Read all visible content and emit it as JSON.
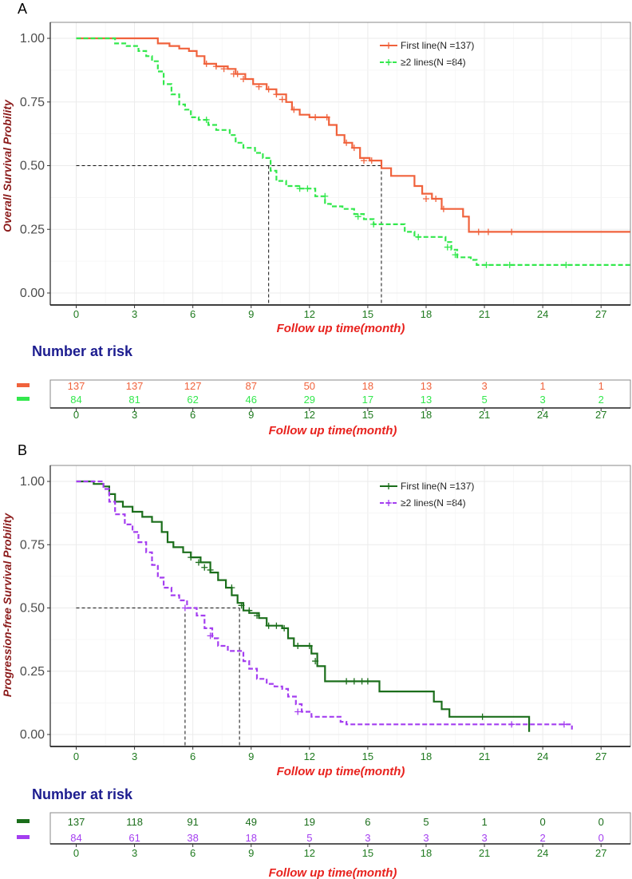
{
  "chart_data": [
    {
      "panel": "A",
      "type": "line",
      "subtype": "kaplan-meier",
      "ylabel": "Overall Survival Probility",
      "xlabel": "Follow up time(month)",
      "xlim": [
        0,
        28.5
      ],
      "ylim": [
        0,
        1.0
      ],
      "xticks": [
        "0",
        "3",
        "6",
        "9",
        "12",
        "15",
        "18",
        "21",
        "24",
        "27"
      ],
      "yticks": [
        "0.00",
        "0.25",
        "0.50",
        "0.75",
        "1.00"
      ],
      "median_lines": [
        9.9,
        15.7
      ],
      "series": [
        {
          "name": "First line(N =137)",
          "color": "#f0623c",
          "dash": false,
          "points": [
            [
              0,
              1.0
            ],
            [
              3.5,
              1.0
            ],
            [
              4.2,
              0.98
            ],
            [
              4.8,
              0.97
            ],
            [
              5.3,
              0.96
            ],
            [
              5.8,
              0.95
            ],
            [
              6.2,
              0.93
            ],
            [
              6.6,
              0.9
            ],
            [
              7.2,
              0.89
            ],
            [
              7.8,
              0.88
            ],
            [
              8.2,
              0.86
            ],
            [
              8.7,
              0.84
            ],
            [
              9.1,
              0.82
            ],
            [
              9.8,
              0.8
            ],
            [
              10.3,
              0.78
            ],
            [
              10.8,
              0.75
            ],
            [
              11.1,
              0.72
            ],
            [
              11.5,
              0.7
            ],
            [
              12.0,
              0.69
            ],
            [
              12.7,
              0.69
            ],
            [
              13.0,
              0.66
            ],
            [
              13.4,
              0.62
            ],
            [
              13.8,
              0.59
            ],
            [
              14.2,
              0.57
            ],
            [
              14.6,
              0.53
            ],
            [
              15.1,
              0.52
            ],
            [
              15.5,
              0.52
            ],
            [
              15.7,
              0.49
            ],
            [
              16.2,
              0.46
            ],
            [
              17.1,
              0.46
            ],
            [
              17.4,
              0.42
            ],
            [
              17.8,
              0.39
            ],
            [
              18.3,
              0.37
            ],
            [
              18.8,
              0.33
            ],
            [
              19.5,
              0.33
            ],
            [
              19.9,
              0.3
            ],
            [
              20.2,
              0.24
            ],
            [
              28.5,
              0.24
            ]
          ],
          "censors": [
            [
              6.7,
              0.9
            ],
            [
              7.2,
              0.89
            ],
            [
              7.6,
              0.88
            ],
            [
              8.1,
              0.86
            ],
            [
              8.3,
              0.86
            ],
            [
              8.6,
              0.84
            ],
            [
              9.4,
              0.81
            ],
            [
              9.9,
              0.8
            ],
            [
              10.3,
              0.78
            ],
            [
              10.6,
              0.76
            ],
            [
              11.2,
              0.72
            ],
            [
              12.3,
              0.69
            ],
            [
              12.9,
              0.69
            ],
            [
              13.9,
              0.59
            ],
            [
              14.3,
              0.57
            ],
            [
              14.8,
              0.52
            ],
            [
              15.2,
              0.52
            ],
            [
              18.0,
              0.37
            ],
            [
              18.5,
              0.37
            ],
            [
              18.9,
              0.33
            ],
            [
              20.7,
              0.24
            ],
            [
              21.2,
              0.24
            ],
            [
              22.4,
              0.24
            ]
          ]
        },
        {
          "name": "≥2 lines(N =84)",
          "color": "#33e84d",
          "dash": true,
          "points": [
            [
              0,
              1.0
            ],
            [
              1.5,
              1.0
            ],
            [
              2.0,
              0.98
            ],
            [
              2.6,
              0.97
            ],
            [
              3.2,
              0.95
            ],
            [
              3.6,
              0.93
            ],
            [
              3.9,
              0.91
            ],
            [
              4.2,
              0.87
            ],
            [
              4.5,
              0.82
            ],
            [
              4.9,
              0.78
            ],
            [
              5.3,
              0.74
            ],
            [
              5.6,
              0.72
            ],
            [
              5.9,
              0.69
            ],
            [
              6.3,
              0.68
            ],
            [
              6.8,
              0.66
            ],
            [
              7.2,
              0.64
            ],
            [
              7.9,
              0.62
            ],
            [
              8.2,
              0.59
            ],
            [
              8.6,
              0.57
            ],
            [
              9.2,
              0.55
            ],
            [
              9.6,
              0.53
            ],
            [
              10.0,
              0.48
            ],
            [
              10.3,
              0.44
            ],
            [
              10.8,
              0.42
            ],
            [
              11.5,
              0.41
            ],
            [
              12.3,
              0.38
            ],
            [
              12.8,
              0.35
            ],
            [
              13.1,
              0.34
            ],
            [
              13.7,
              0.33
            ],
            [
              14.3,
              0.31
            ],
            [
              14.8,
              0.29
            ],
            [
              15.3,
              0.27
            ],
            [
              16.3,
              0.27
            ],
            [
              16.9,
              0.24
            ],
            [
              17.4,
              0.22
            ],
            [
              18.2,
              0.22
            ],
            [
              19.0,
              0.2
            ],
            [
              19.3,
              0.17
            ],
            [
              19.6,
              0.14
            ],
            [
              20.3,
              0.13
            ],
            [
              20.6,
              0.11
            ],
            [
              28.5,
              0.11
            ]
          ],
          "censors": [
            [
              6.7,
              0.68
            ],
            [
              11.5,
              0.41
            ],
            [
              11.9,
              0.41
            ],
            [
              12.8,
              0.38
            ],
            [
              14.5,
              0.3
            ],
            [
              15.3,
              0.27
            ],
            [
              17.6,
              0.22
            ],
            [
              19.1,
              0.18
            ],
            [
              19.5,
              0.15
            ],
            [
              21.1,
              0.11
            ],
            [
              22.3,
              0.11
            ],
            [
              25.2,
              0.11
            ]
          ]
        }
      ],
      "risk_table": {
        "title": "Number at risk",
        "xlabel": "Follow up time(month)",
        "rows": [
          {
            "color": "#f0623c",
            "values": [
              "137",
              "137",
              "127",
              "87",
              "50",
              "18",
              "13",
              "3",
              "1",
              "1"
            ]
          },
          {
            "color": "#33e84d",
            "values": [
              "84",
              "81",
              "62",
              "46",
              "29",
              "17",
              "13",
              "5",
              "3",
              "2"
            ]
          }
        ]
      }
    },
    {
      "panel": "B",
      "type": "line",
      "subtype": "kaplan-meier",
      "ylabel": "Progression-free Survival Probility",
      "xlabel": "Follow up time(month)",
      "xlim": [
        0,
        28.5
      ],
      "ylim": [
        0,
        1.0
      ],
      "xticks": [
        "0",
        "3",
        "6",
        "9",
        "12",
        "15",
        "18",
        "21",
        "24",
        "27"
      ],
      "yticks": [
        "0.00",
        "0.25",
        "0.50",
        "0.75",
        "1.00"
      ],
      "median_lines": [
        5.6,
        8.4
      ],
      "series": [
        {
          "name": "First line(N =137)",
          "color": "#1b6e1b",
          "dash": false,
          "points": [
            [
              0,
              1.0
            ],
            [
              0.6,
              1.0
            ],
            [
              0.9,
              0.99
            ],
            [
              1.4,
              0.98
            ],
            [
              1.7,
              0.95
            ],
            [
              2.0,
              0.92
            ],
            [
              2.4,
              0.9
            ],
            [
              2.9,
              0.88
            ],
            [
              3.4,
              0.86
            ],
            [
              3.9,
              0.84
            ],
            [
              4.4,
              0.8
            ],
            [
              4.7,
              0.76
            ],
            [
              5.0,
              0.74
            ],
            [
              5.5,
              0.72
            ],
            [
              5.9,
              0.7
            ],
            [
              6.4,
              0.68
            ],
            [
              6.9,
              0.64
            ],
            [
              7.3,
              0.61
            ],
            [
              7.7,
              0.58
            ],
            [
              8.0,
              0.55
            ],
            [
              8.3,
              0.52
            ],
            [
              8.6,
              0.49
            ],
            [
              8.9,
              0.48
            ],
            [
              9.4,
              0.46
            ],
            [
              9.8,
              0.43
            ],
            [
              10.6,
              0.42
            ],
            [
              10.9,
              0.38
            ],
            [
              11.2,
              0.35
            ],
            [
              11.8,
              0.35
            ],
            [
              12.1,
              0.32
            ],
            [
              12.4,
              0.27
            ],
            [
              12.8,
              0.21
            ],
            [
              15.5,
              0.21
            ],
            [
              15.6,
              0.17
            ],
            [
              18.2,
              0.17
            ],
            [
              18.4,
              0.13
            ],
            [
              18.8,
              0.1
            ],
            [
              19.2,
              0.07
            ],
            [
              23.3,
              0.07
            ],
            [
              23.3,
              0.01
            ]
          ],
          "censors": [
            [
              5.9,
              0.7
            ],
            [
              6.3,
              0.68
            ],
            [
              6.6,
              0.66
            ],
            [
              6.9,
              0.65
            ],
            [
              8.0,
              0.58
            ],
            [
              8.5,
              0.51
            ],
            [
              8.9,
              0.49
            ],
            [
              9.3,
              0.47
            ],
            [
              9.9,
              0.43
            ],
            [
              10.3,
              0.43
            ],
            [
              10.7,
              0.42
            ],
            [
              11.4,
              0.35
            ],
            [
              12.0,
              0.35
            ],
            [
              12.3,
              0.29
            ],
            [
              13.9,
              0.21
            ],
            [
              14.3,
              0.21
            ],
            [
              14.7,
              0.21
            ],
            [
              15.0,
              0.21
            ],
            [
              20.9,
              0.07
            ]
          ]
        },
        {
          "name": "≥2 lines(N =84)",
          "color": "#a43ef0",
          "dash": true,
          "points": [
            [
              0,
              1.0
            ],
            [
              1.0,
              1.0
            ],
            [
              1.4,
              0.97
            ],
            [
              1.7,
              0.92
            ],
            [
              2.0,
              0.87
            ],
            [
              2.5,
              0.83
            ],
            [
              2.9,
              0.8
            ],
            [
              3.2,
              0.76
            ],
            [
              3.6,
              0.72
            ],
            [
              3.9,
              0.67
            ],
            [
              4.2,
              0.62
            ],
            [
              4.5,
              0.58
            ],
            [
              4.9,
              0.55
            ],
            [
              5.3,
              0.53
            ],
            [
              5.7,
              0.5
            ],
            [
              6.2,
              0.47
            ],
            [
              6.6,
              0.42
            ],
            [
              7.0,
              0.38
            ],
            [
              7.3,
              0.35
            ],
            [
              7.8,
              0.33
            ],
            [
              8.4,
              0.33
            ],
            [
              8.6,
              0.29
            ],
            [
              8.9,
              0.26
            ],
            [
              9.3,
              0.22
            ],
            [
              9.8,
              0.2
            ],
            [
              10.2,
              0.19
            ],
            [
              10.6,
              0.18
            ],
            [
              10.9,
              0.15
            ],
            [
              11.3,
              0.12
            ],
            [
              11.6,
              0.09
            ],
            [
              12.1,
              0.07
            ],
            [
              13.2,
              0.07
            ],
            [
              13.6,
              0.05
            ],
            [
              13.9,
              0.04
            ],
            [
              25.5,
              0.04
            ],
            [
              25.5,
              0.02
            ]
          ],
          "censors": [
            [
              5.6,
              0.5
            ],
            [
              6.9,
              0.39
            ],
            [
              11.4,
              0.09
            ],
            [
              22.4,
              0.04
            ],
            [
              25.1,
              0.04
            ]
          ]
        }
      ],
      "risk_table": {
        "title": "Number at risk",
        "xlabel": "Follow up time(month)",
        "rows": [
          {
            "color": "#1b6e1b",
            "values": [
              "137",
              "118",
              "91",
              "49",
              "19",
              "6",
              "5",
              "1",
              "0",
              "0"
            ]
          },
          {
            "color": "#a43ef0",
            "values": [
              "84",
              "61",
              "38",
              "18",
              "5",
              "3",
              "3",
              "3",
              "2",
              "0"
            ]
          }
        ]
      }
    }
  ]
}
